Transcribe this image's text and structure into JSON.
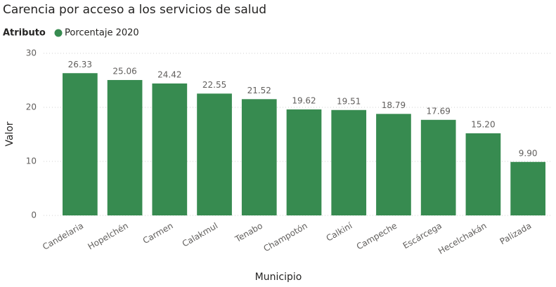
{
  "chart_data": {
    "type": "bar",
    "title": "Carencia por acceso a los servicios de salud",
    "legend_title": "Atributo",
    "x_label": "Municipio",
    "y_label": "Valor",
    "categories": [
      "Candelaria",
      "Hopelchén",
      "Carmen",
      "Calakmul",
      "Tenabo",
      "Champotón",
      "Calkiní",
      "Campeche",
      "Escárcega",
      "Hecelchakán",
      "Palizada"
    ],
    "series": [
      {
        "name": "Porcentaje 2020",
        "color": "#378b50",
        "values": [
          26.33,
          25.06,
          24.42,
          22.55,
          21.52,
          19.62,
          19.51,
          18.79,
          17.69,
          15.2,
          9.9
        ],
        "value_labels": [
          "26.33",
          "25.06",
          "24.42",
          "22.55",
          "21.52",
          "19.62",
          "19.51",
          "18.79",
          "17.69",
          "15.20",
          "9.90"
        ]
      }
    ],
    "ylim": [
      0,
      30
    ],
    "yticks": [
      0,
      10,
      20,
      30
    ],
    "grid": true
  }
}
